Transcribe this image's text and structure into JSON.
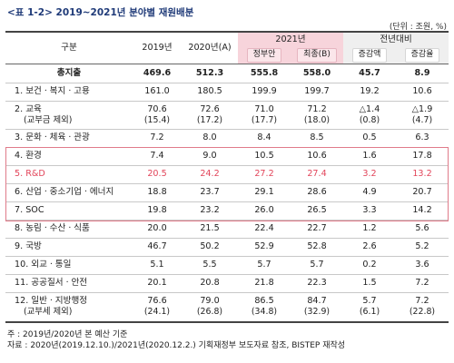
{
  "title": "<표 1-2> 2019~2021년 분야별 재원배분",
  "unit": "(단위 : 조원, %)",
  "headers": {
    "category": "구분",
    "y2019": "2019년",
    "y2020": "2020년(A)",
    "y2021": "2021년",
    "gov_plan": "정부안",
    "final": "최종(B)",
    "yoy": "전년대비",
    "inc_amount": "증감액",
    "inc_rate": "증감율"
  },
  "total": {
    "label": "총지출",
    "v2019": "469.6",
    "v2020": "512.3",
    "gov": "555.8",
    "final": "558.0",
    "amt": "45.7",
    "rate": "8.9"
  },
  "rows": [
    {
      "label": "1. 보건ㆍ복지ㆍ고용",
      "v2019": "161.0",
      "v2020": "180.5",
      "gov": "199.9",
      "final": "199.7",
      "amt": "19.2",
      "rate": "10.6"
    },
    {
      "label": "2. 교육",
      "label2": "(교부금 제외)",
      "v2019": "70.6",
      "v2019b": "(15.4)",
      "v2020": "72.6",
      "v2020b": "(17.2)",
      "gov": "71.0",
      "govb": "(17.7)",
      "final": "71.2",
      "finalb": "(18.0)",
      "amt": "△1.4",
      "amtb": "(0.8)",
      "rate": "△1.9",
      "rateb": "(4.7)"
    },
    {
      "label": "3. 문화ㆍ체육ㆍ관광",
      "v2019": "7.2",
      "v2020": "8.0",
      "gov": "8.4",
      "final": "8.5",
      "amt": "0.5",
      "rate": "6.3"
    },
    {
      "label": "4. 환경",
      "v2019": "7.4",
      "v2020": "9.0",
      "gov": "10.5",
      "final": "10.6",
      "amt": "1.6",
      "rate": "17.8"
    },
    {
      "label": "5. R&D",
      "v2019": "20.5",
      "v2020": "24.2",
      "gov": "27.2",
      "final": "27.4",
      "amt": "3.2",
      "rate": "13.2"
    },
    {
      "label": "6. 산업ㆍ중소기업ㆍ에너지",
      "v2019": "18.8",
      "v2020": "23.7",
      "gov": "29.1",
      "final": "28.6",
      "amt": "4.9",
      "rate": "20.7"
    },
    {
      "label": "7. SOC",
      "v2019": "19.8",
      "v2020": "23.2",
      "gov": "26.0",
      "final": "26.5",
      "amt": "3.3",
      "rate": "14.2"
    },
    {
      "label": "8. 농림ㆍ수산ㆍ식품",
      "v2019": "20.0",
      "v2020": "21.5",
      "gov": "22.4",
      "final": "22.7",
      "amt": "1.2",
      "rate": "5.6"
    },
    {
      "label": "9. 국방",
      "v2019": "46.7",
      "v2020": "50.2",
      "gov": "52.9",
      "final": "52.8",
      "amt": "2.6",
      "rate": "5.2"
    },
    {
      "label": "10. 외교ㆍ통일",
      "v2019": "5.1",
      "v2020": "5.5",
      "gov": "5.7",
      "final": "5.7",
      "amt": "0.2",
      "rate": "3.6"
    },
    {
      "label": "11. 공공질서ㆍ안전",
      "v2019": "20.1",
      "v2020": "20.8",
      "gov": "21.8",
      "final": "22.3",
      "amt": "1.5",
      "rate": "7.2"
    },
    {
      "label": "12. 일반ㆍ지방행정",
      "label2": "(교부세 제외)",
      "v2019": "76.6",
      "v2019b": "(24.1)",
      "v2020": "79.0",
      "v2020b": "(26.8)",
      "gov": "86.5",
      "govb": "(34.8)",
      "final": "84.7",
      "finalb": "(32.9)",
      "amt": "5.7",
      "amtb": "(6.1)",
      "rate": "7.2",
      "rateb": "(22.8)"
    }
  ],
  "notes": {
    "note1": "주 : 2019년/2020년 본 예산 기준",
    "note2": "자료 : 2020년(2019.12.10.)/2021년(2020.12.2.) 기획재정부 보도자료 참조, BISTEP 재작성"
  },
  "colors": {
    "highlight_border": "#e07b8a",
    "rd_text": "#e2455a",
    "shade": "#f7d4db",
    "title": "#1f3a78"
  }
}
